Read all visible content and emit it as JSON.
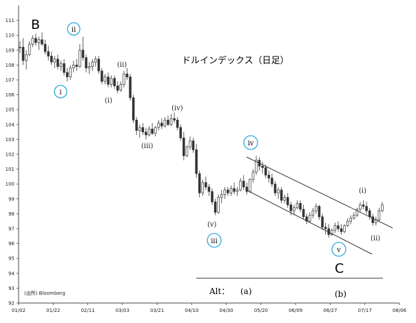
{
  "chart_data": {
    "type": "candlestick",
    "title": "ドルインデックス（日足）",
    "source": "(出所) Bloomberg",
    "ylim": [
      92,
      112
    ],
    "y_ticks": [
      92,
      93,
      94,
      95,
      96,
      97,
      98,
      99,
      100,
      101,
      102,
      103,
      104,
      105,
      106,
      107,
      108,
      109,
      110,
      111
    ],
    "x_ticks": [
      "01/02",
      "01/22",
      "02/11",
      "03/03",
      "03/21",
      "04/10",
      "04/30",
      "05/20",
      "06/09",
      "06/27",
      "07/17",
      "08/06"
    ],
    "series": [
      {
        "values": [
          [
            109.2,
            109.6,
            108.8,
            109.2
          ],
          [
            109.2,
            109.8,
            108.0,
            108.3
          ],
          [
            108.3,
            109.0,
            107.7,
            108.7
          ],
          [
            108.7,
            109.6,
            108.6,
            109.4
          ],
          [
            109.4,
            110.0,
            109.2,
            109.8
          ],
          [
            109.8,
            110.1,
            109.3,
            109.5
          ],
          [
            109.5,
            109.9,
            109.0,
            109.7
          ],
          [
            109.7,
            110.2,
            109.3,
            109.4
          ],
          [
            109.4,
            109.7,
            108.7,
            108.9
          ],
          [
            108.9,
            109.3,
            108.3,
            108.6
          ],
          [
            108.6,
            108.9,
            108.0,
            108.2
          ],
          [
            108.2,
            108.6,
            107.8,
            108.4
          ],
          [
            108.4,
            108.7,
            107.7,
            107.9
          ],
          [
            107.9,
            108.3,
            107.6,
            108.1
          ],
          [
            108.1,
            108.4,
            107.3,
            107.5
          ],
          [
            107.5,
            107.8,
            106.9,
            107.2
          ],
          [
            107.2,
            108.0,
            107.0,
            107.8
          ],
          [
            107.8,
            108.3,
            107.5,
            108.0
          ],
          [
            108.0,
            108.4,
            107.6,
            107.9
          ],
          [
            107.9,
            109.4,
            107.8,
            109.0
          ],
          [
            109.0,
            109.9,
            108.3,
            108.5
          ],
          [
            108.5,
            108.7,
            107.5,
            107.8
          ],
          [
            107.8,
            108.2,
            107.4,
            107.9
          ],
          [
            107.9,
            108.4,
            107.6,
            108.2
          ],
          [
            108.2,
            108.6,
            107.9,
            108.4
          ],
          [
            108.4,
            108.6,
            107.4,
            107.6
          ],
          [
            107.6,
            107.8,
            106.7,
            106.9
          ],
          [
            106.9,
            107.4,
            106.7,
            107.2
          ],
          [
            107.2,
            107.5,
            106.5,
            106.7
          ],
          [
            106.7,
            107.3,
            106.5,
            107.1
          ],
          [
            107.1,
            107.3,
            106.4,
            106.6
          ],
          [
            106.6,
            106.9,
            106.1,
            106.3
          ],
          [
            106.3,
            106.9,
            106.2,
            106.7
          ],
          [
            106.7,
            107.6,
            106.5,
            107.4
          ],
          [
            107.4,
            107.8,
            107.0,
            107.2
          ],
          [
            107.2,
            107.4,
            105.6,
            105.8
          ],
          [
            105.8,
            106.0,
            104.1,
            104.3
          ],
          [
            104.3,
            104.5,
            103.3,
            103.6
          ],
          [
            103.6,
            104.0,
            103.1,
            103.8
          ],
          [
            103.8,
            104.1,
            103.3,
            103.5
          ],
          [
            103.5,
            103.8,
            103.0,
            103.3
          ],
          [
            103.3,
            103.9,
            103.2,
            103.7
          ],
          [
            103.7,
            104.1,
            103.3,
            103.4
          ],
          [
            103.4,
            103.9,
            103.2,
            103.8
          ],
          [
            103.8,
            104.3,
            103.6,
            104.1
          ],
          [
            104.1,
            104.4,
            103.7,
            103.9
          ],
          [
            103.9,
            104.5,
            103.8,
            104.3
          ],
          [
            104.3,
            104.6,
            103.9,
            104.0
          ],
          [
            104.0,
            104.7,
            103.9,
            104.4
          ],
          [
            104.4,
            104.8,
            104.1,
            104.3
          ],
          [
            104.3,
            104.5,
            103.6,
            103.8
          ],
          [
            103.8,
            104.0,
            102.9,
            103.1
          ],
          [
            103.1,
            103.5,
            101.6,
            101.9
          ],
          [
            101.9,
            102.6,
            101.8,
            102.5
          ],
          [
            102.5,
            103.2,
            102.3,
            102.9
          ],
          [
            102.9,
            103.1,
            102.1,
            102.3
          ],
          [
            102.3,
            102.7,
            100.4,
            100.7
          ],
          [
            100.7,
            100.9,
            99.1,
            99.4
          ],
          [
            99.4,
            100.3,
            99.2,
            100.1
          ],
          [
            100.1,
            100.5,
            99.6,
            99.8
          ],
          [
            99.8,
            100.0,
            99.2,
            99.5
          ],
          [
            99.5,
            99.7,
            98.6,
            98.8
          ],
          [
            98.8,
            99.0,
            97.9,
            98.1
          ],
          [
            98.1,
            99.3,
            98.0,
            99.1
          ],
          [
            99.1,
            99.6,
            98.7,
            99.3
          ],
          [
            99.3,
            99.8,
            99.0,
            99.6
          ],
          [
            99.6,
            99.8,
            99.2,
            99.4
          ],
          [
            99.4,
            99.9,
            99.2,
            99.7
          ],
          [
            99.7,
            100.1,
            99.3,
            99.5
          ],
          [
            99.5,
            99.8,
            99.2,
            99.6
          ],
          [
            99.6,
            100.4,
            99.5,
            100.2
          ],
          [
            100.2,
            100.6,
            99.6,
            99.8
          ],
          [
            99.8,
            100.1,
            99.3,
            99.5
          ],
          [
            99.5,
            100.4,
            99.4,
            100.3
          ],
          [
            100.3,
            101.0,
            100.1,
            100.8
          ],
          [
            100.8,
            101.9,
            100.6,
            101.6
          ],
          [
            101.6,
            101.8,
            100.9,
            101.2
          ],
          [
            101.2,
            101.5,
            100.7,
            101.1
          ],
          [
            101.1,
            101.3,
            100.4,
            100.6
          ],
          [
            100.6,
            100.9,
            100.1,
            100.4
          ],
          [
            100.4,
            100.7,
            99.8,
            100.0
          ],
          [
            100.0,
            100.2,
            99.2,
            99.4
          ],
          [
            99.4,
            99.8,
            99.0,
            99.6
          ],
          [
            99.6,
            99.8,
            98.7,
            98.9
          ],
          [
            98.9,
            99.3,
            98.7,
            99.1
          ],
          [
            99.1,
            99.4,
            98.4,
            98.6
          ],
          [
            98.6,
            98.8,
            97.9,
            98.2
          ],
          [
            98.2,
            98.6,
            97.9,
            98.4
          ],
          [
            98.4,
            98.9,
            98.3,
            98.7
          ],
          [
            98.7,
            98.9,
            98.1,
            98.3
          ],
          [
            98.3,
            98.6,
            97.6,
            97.8
          ],
          [
            97.8,
            98.0,
            97.3,
            97.5
          ],
          [
            97.5,
            98.1,
            97.4,
            97.9
          ],
          [
            97.9,
            98.4,
            97.7,
            98.2
          ],
          [
            98.2,
            98.7,
            98.0,
            98.5
          ],
          [
            98.5,
            98.6,
            97.6,
            97.8
          ],
          [
            97.8,
            98.0,
            96.9,
            97.1
          ],
          [
            97.1,
            97.4,
            96.6,
            97.0
          ],
          [
            97.0,
            97.3,
            96.4,
            96.6
          ],
          [
            96.6,
            97.0,
            96.5,
            96.9
          ],
          [
            96.9,
            97.4,
            96.7,
            97.2
          ],
          [
            97.2,
            97.5,
            96.8,
            97.0
          ],
          [
            97.0,
            97.3,
            96.6,
            96.8
          ],
          [
            96.8,
            97.3,
            96.7,
            97.2
          ],
          [
            97.2,
            97.7,
            97.1,
            97.5
          ],
          [
            97.5,
            97.9,
            97.3,
            97.7
          ],
          [
            97.7,
            98.1,
            97.6,
            97.9
          ],
          [
            97.9,
            98.4,
            97.8,
            98.3
          ],
          [
            98.3,
            98.8,
            98.1,
            98.6
          ],
          [
            98.6,
            98.9,
            98.3,
            98.5
          ],
          [
            98.5,
            98.8,
            98.0,
            98.2
          ],
          [
            98.2,
            98.4,
            97.6,
            97.8
          ],
          [
            97.8,
            98.0,
            97.2,
            97.4
          ],
          [
            97.4,
            97.8,
            97.2,
            97.6
          ],
          [
            97.6,
            98.4,
            97.5,
            98.2
          ],
          [
            98.2,
            98.8,
            98.1,
            98.6
          ]
        ]
      }
    ]
  },
  "labels": {
    "B": "B",
    "C": "C",
    "alt": "Alt：",
    "alt_a": "(a)",
    "alt_b": "(b)",
    "small_romans": [
      "(ii)",
      "(i)",
      "(iii)",
      "(iv)",
      "(v)",
      "(i)",
      "(ii)"
    ],
    "circled_romans": [
      "ii",
      "i",
      "iii",
      "iv",
      "v"
    ]
  },
  "colors": {
    "candle_line": "#333333",
    "candle_down": "#333333",
    "candle_up": "#ffffff",
    "circle": "#29a8df",
    "axis": "#444444"
  }
}
